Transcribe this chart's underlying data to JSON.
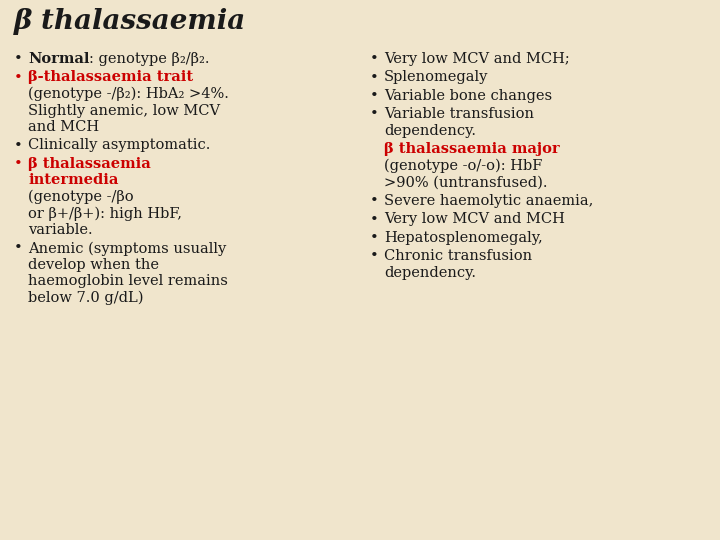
{
  "title": "β thalassaemia",
  "bg_color": "#f0e5cc",
  "title_fontsize": 20,
  "body_fontsize": 10.5,
  "red_color": "#cc0000",
  "black_color": "#1a1a1a",
  "left_items": [
    {
      "bullet_color": "black",
      "segments": [
        {
          "text": "Normal",
          "bold": true,
          "color": "black",
          "inline": true
        },
        {
          "text": ": genotype β₂/β₂.",
          "bold": false,
          "color": "black",
          "inline": true
        }
      ],
      "extra_lines": []
    },
    {
      "bullet_color": "red",
      "segments": [
        {
          "text": "β-thalassaemia trait",
          "bold": true,
          "color": "red",
          "inline": true
        }
      ],
      "extra_lines": [
        {
          "text": "(genotype -/β₂): HbA₂ >4%.",
          "bold": false,
          "color": "black"
        },
        {
          "text": "Slightly anemic, low MCV",
          "bold": false,
          "color": "black"
        },
        {
          "text": "and MCH",
          "bold": false,
          "color": "black"
        }
      ]
    },
    {
      "bullet_color": "black",
      "segments": [
        {
          "text": "Clinically asymptomatic.",
          "bold": false,
          "color": "black",
          "inline": true
        }
      ],
      "extra_lines": []
    },
    {
      "bullet_color": "red",
      "segments": [
        {
          "text": "β thalassaemia",
          "bold": true,
          "color": "red",
          "inline": true
        }
      ],
      "extra_lines": [
        {
          "text": "intermedia",
          "bold": true,
          "color": "red"
        },
        {
          "text": "(genotype -/βo",
          "bold": false,
          "color": "black"
        },
        {
          "text": "or β+/β+): high HbF,",
          "bold": false,
          "color": "black"
        },
        {
          "text": "variable.",
          "bold": false,
          "color": "black"
        }
      ]
    },
    {
      "bullet_color": "black",
      "segments": [
        {
          "text": "Anemic (symptoms usually",
          "bold": false,
          "color": "black",
          "inline": true
        }
      ],
      "extra_lines": [
        {
          "text": "develop when the",
          "bold": false,
          "color": "black"
        },
        {
          "text": "haemoglobin level remains",
          "bold": false,
          "color": "black"
        },
        {
          "text": "below 7.0 g/dL)",
          "bold": false,
          "color": "black"
        }
      ]
    }
  ],
  "right_items": [
    {
      "bullet_color": "black",
      "is_header": false,
      "segments": [
        {
          "text": "Very low MCV and MCH;",
          "bold": false,
          "color": "black",
          "inline": true
        }
      ],
      "extra_lines": []
    },
    {
      "bullet_color": "black",
      "is_header": false,
      "segments": [
        {
          "text": "Splenomegaly",
          "bold": false,
          "color": "black",
          "inline": true
        }
      ],
      "extra_lines": []
    },
    {
      "bullet_color": "black",
      "is_header": false,
      "segments": [
        {
          "text": "Variable bone changes",
          "bold": false,
          "color": "black",
          "inline": true
        }
      ],
      "extra_lines": []
    },
    {
      "bullet_color": "black",
      "is_header": false,
      "segments": [
        {
          "text": "Variable transfusion",
          "bold": false,
          "color": "black",
          "inline": true
        }
      ],
      "extra_lines": [
        {
          "text": "dependency.",
          "bold": false,
          "color": "black"
        }
      ]
    },
    {
      "bullet_color": "red",
      "is_header": true,
      "segments": [
        {
          "text": "β thalassaemia major",
          "bold": true,
          "color": "red",
          "inline": true
        }
      ],
      "extra_lines": [
        {
          "text": "(genotype -o/-o): HbF",
          "bold": false,
          "color": "black"
        },
        {
          "text": ">90% (untransfused).",
          "bold": false,
          "color": "black"
        }
      ]
    },
    {
      "bullet_color": "black",
      "is_header": false,
      "segments": [
        {
          "text": "Severe haemolytic anaemia,",
          "bold": false,
          "color": "black",
          "inline": true
        }
      ],
      "extra_lines": []
    },
    {
      "bullet_color": "black",
      "is_header": false,
      "segments": [
        {
          "text": "Very low MCV and MCH",
          "bold": false,
          "color": "black",
          "inline": true
        }
      ],
      "extra_lines": []
    },
    {
      "bullet_color": "black",
      "is_header": false,
      "segments": [
        {
          "text": "Hepatosplenomegaly,",
          "bold": false,
          "color": "black",
          "inline": true
        }
      ],
      "extra_lines": []
    },
    {
      "bullet_color": "black",
      "is_header": false,
      "segments": [
        {
          "text": "Chronic transfusion",
          "bold": false,
          "color": "black",
          "inline": true
        }
      ],
      "extra_lines": [
        {
          "text": "dependency.",
          "bold": false,
          "color": "black"
        }
      ]
    }
  ]
}
